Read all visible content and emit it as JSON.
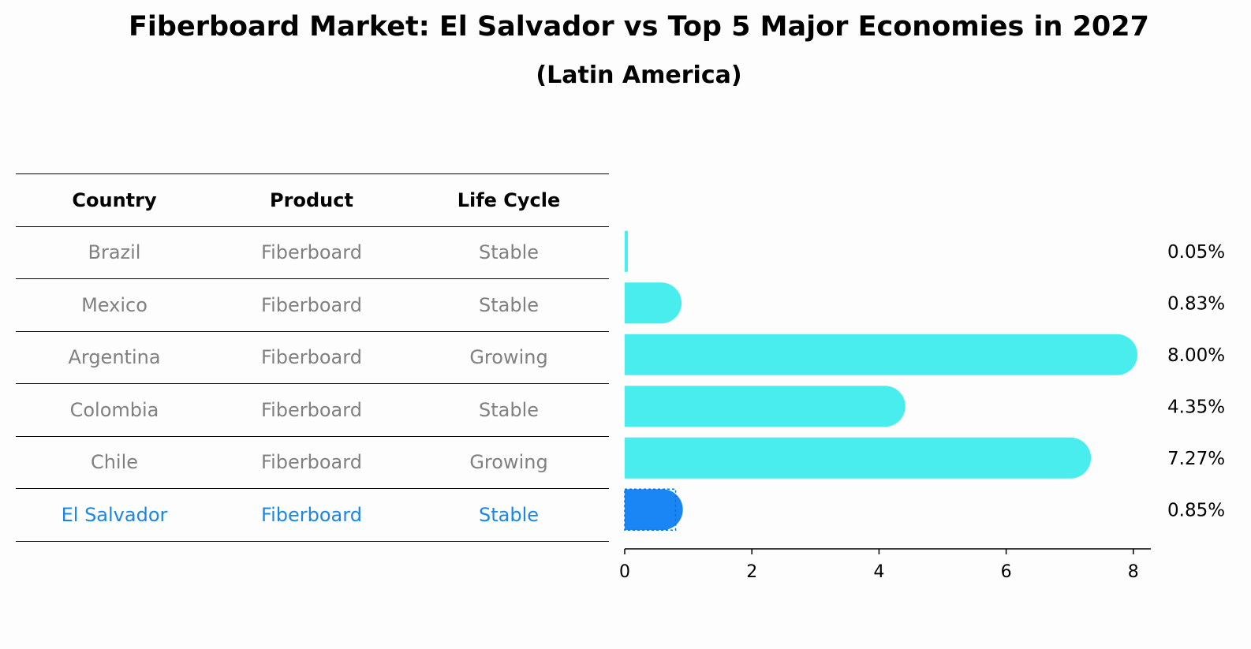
{
  "title": "Fiberboard Market: El Salvador vs Top 5 Major Economies in 2027",
  "subtitle": "(Latin America)",
  "table": {
    "headers": [
      "Country",
      "Product",
      "Life Cycle"
    ],
    "rows": [
      {
        "country": "Brazil",
        "product": "Fiberboard",
        "life_cycle": "Stable"
      },
      {
        "country": "Mexico",
        "product": "Fiberboard",
        "life_cycle": "Stable"
      },
      {
        "country": "Argentina",
        "product": "Fiberboard",
        "life_cycle": "Growing"
      },
      {
        "country": "Colombia",
        "product": "Fiberboard",
        "life_cycle": "Stable"
      },
      {
        "country": "Chile",
        "product": "Fiberboard",
        "life_cycle": "Growing"
      },
      {
        "country": "El Salvador",
        "product": "Fiberboard",
        "life_cycle": "Stable"
      }
    ]
  },
  "chart_data": {
    "type": "bar",
    "orientation": "horizontal",
    "categories": [
      "Brazil",
      "Mexico",
      "Argentina",
      "Colombia",
      "Chile",
      "El Salvador"
    ],
    "values": [
      0.05,
      0.83,
      8.0,
      4.35,
      7.27,
      0.85
    ],
    "value_labels": [
      "0.05%",
      "0.83%",
      "8.00%",
      "4.35%",
      "7.27%",
      "0.85%"
    ],
    "xlim": [
      0,
      8.4
    ],
    "xticks": [
      0,
      2,
      4,
      6,
      8
    ],
    "highlight": "El Salvador",
    "colors": {
      "default": "#4aeded",
      "highlight": "#1a86f5",
      "text_muted": "#808080",
      "text_highlight": "#1a86e8"
    }
  }
}
